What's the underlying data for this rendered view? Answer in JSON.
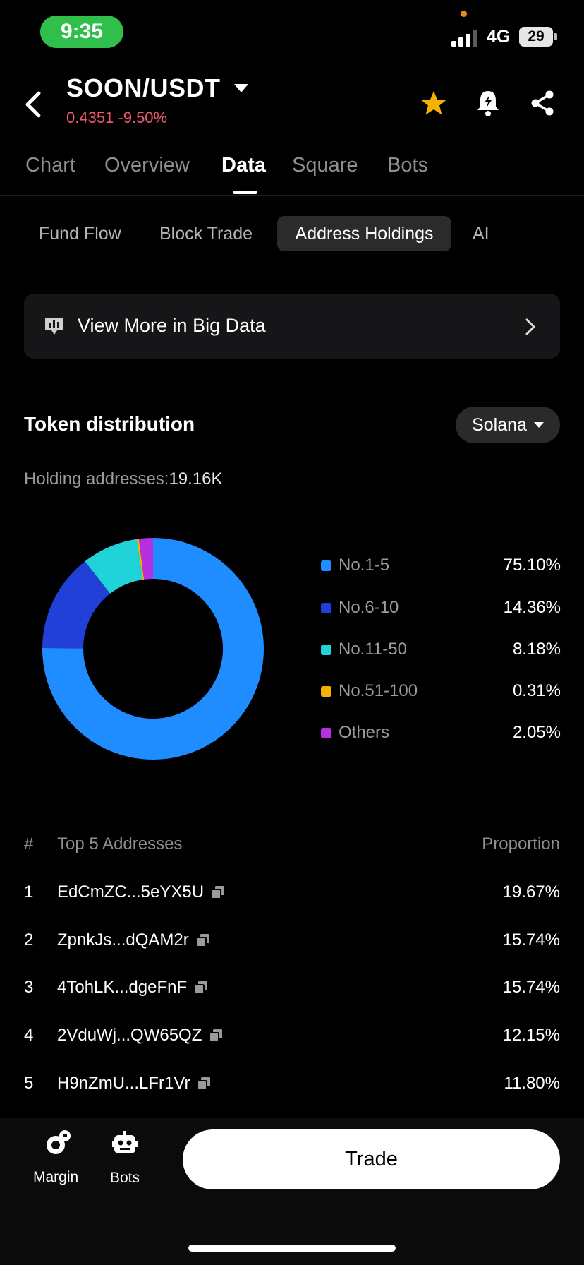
{
  "status": {
    "time": "9:35",
    "network": "4G",
    "battery": "29"
  },
  "header": {
    "pair": "SOON/USDT",
    "price": "0.4351 -9.50%"
  },
  "tabs": [
    "Chart",
    "Overview",
    "Data",
    "Square",
    "Bots"
  ],
  "subtabs": [
    "Fund Flow",
    "Block Trade",
    "Address Holdings",
    "AI"
  ],
  "big_data": {
    "label": "View More in Big Data"
  },
  "distribution": {
    "title": "Token distribution",
    "chain": "Solana",
    "holding_label": "Holding addresses:",
    "holding_value": "19.16K"
  },
  "chart_data": {
    "type": "pie",
    "categories": [
      "No.1-5",
      "No.6-10",
      "No.11-50",
      "No.51-100",
      "Others"
    ],
    "values": [
      75.1,
      14.36,
      8.18,
      0.31,
      2.05
    ],
    "labels": [
      "75.10%",
      "14.36%",
      "8.18%",
      "0.31%",
      "2.05%"
    ],
    "colors": [
      "#1f8cff",
      "#2040d8",
      "#1fd3d8",
      "#f5b300",
      "#b530e0"
    ],
    "donut": true,
    "legend": "right"
  },
  "table": {
    "col_index": "#",
    "col_address": "Top 5 Addresses",
    "col_prop": "Proportion",
    "rows": [
      {
        "idx": "1",
        "addr": "EdCmZC...5eYX5U",
        "prop": "19.67%"
      },
      {
        "idx": "2",
        "addr": "ZpnkJs...dQAM2r",
        "prop": "15.74%"
      },
      {
        "idx": "3",
        "addr": "4TohLK...dgeFnF",
        "prop": "15.74%"
      },
      {
        "idx": "4",
        "addr": "2VduWj...QW65QZ",
        "prop": "12.15%"
      },
      {
        "idx": "5",
        "addr": "H9nZmU...LFr1Vr",
        "prop": "11.80%"
      }
    ]
  },
  "bottom": {
    "margin": "Margin",
    "bots": "Bots",
    "trade": "Trade"
  }
}
